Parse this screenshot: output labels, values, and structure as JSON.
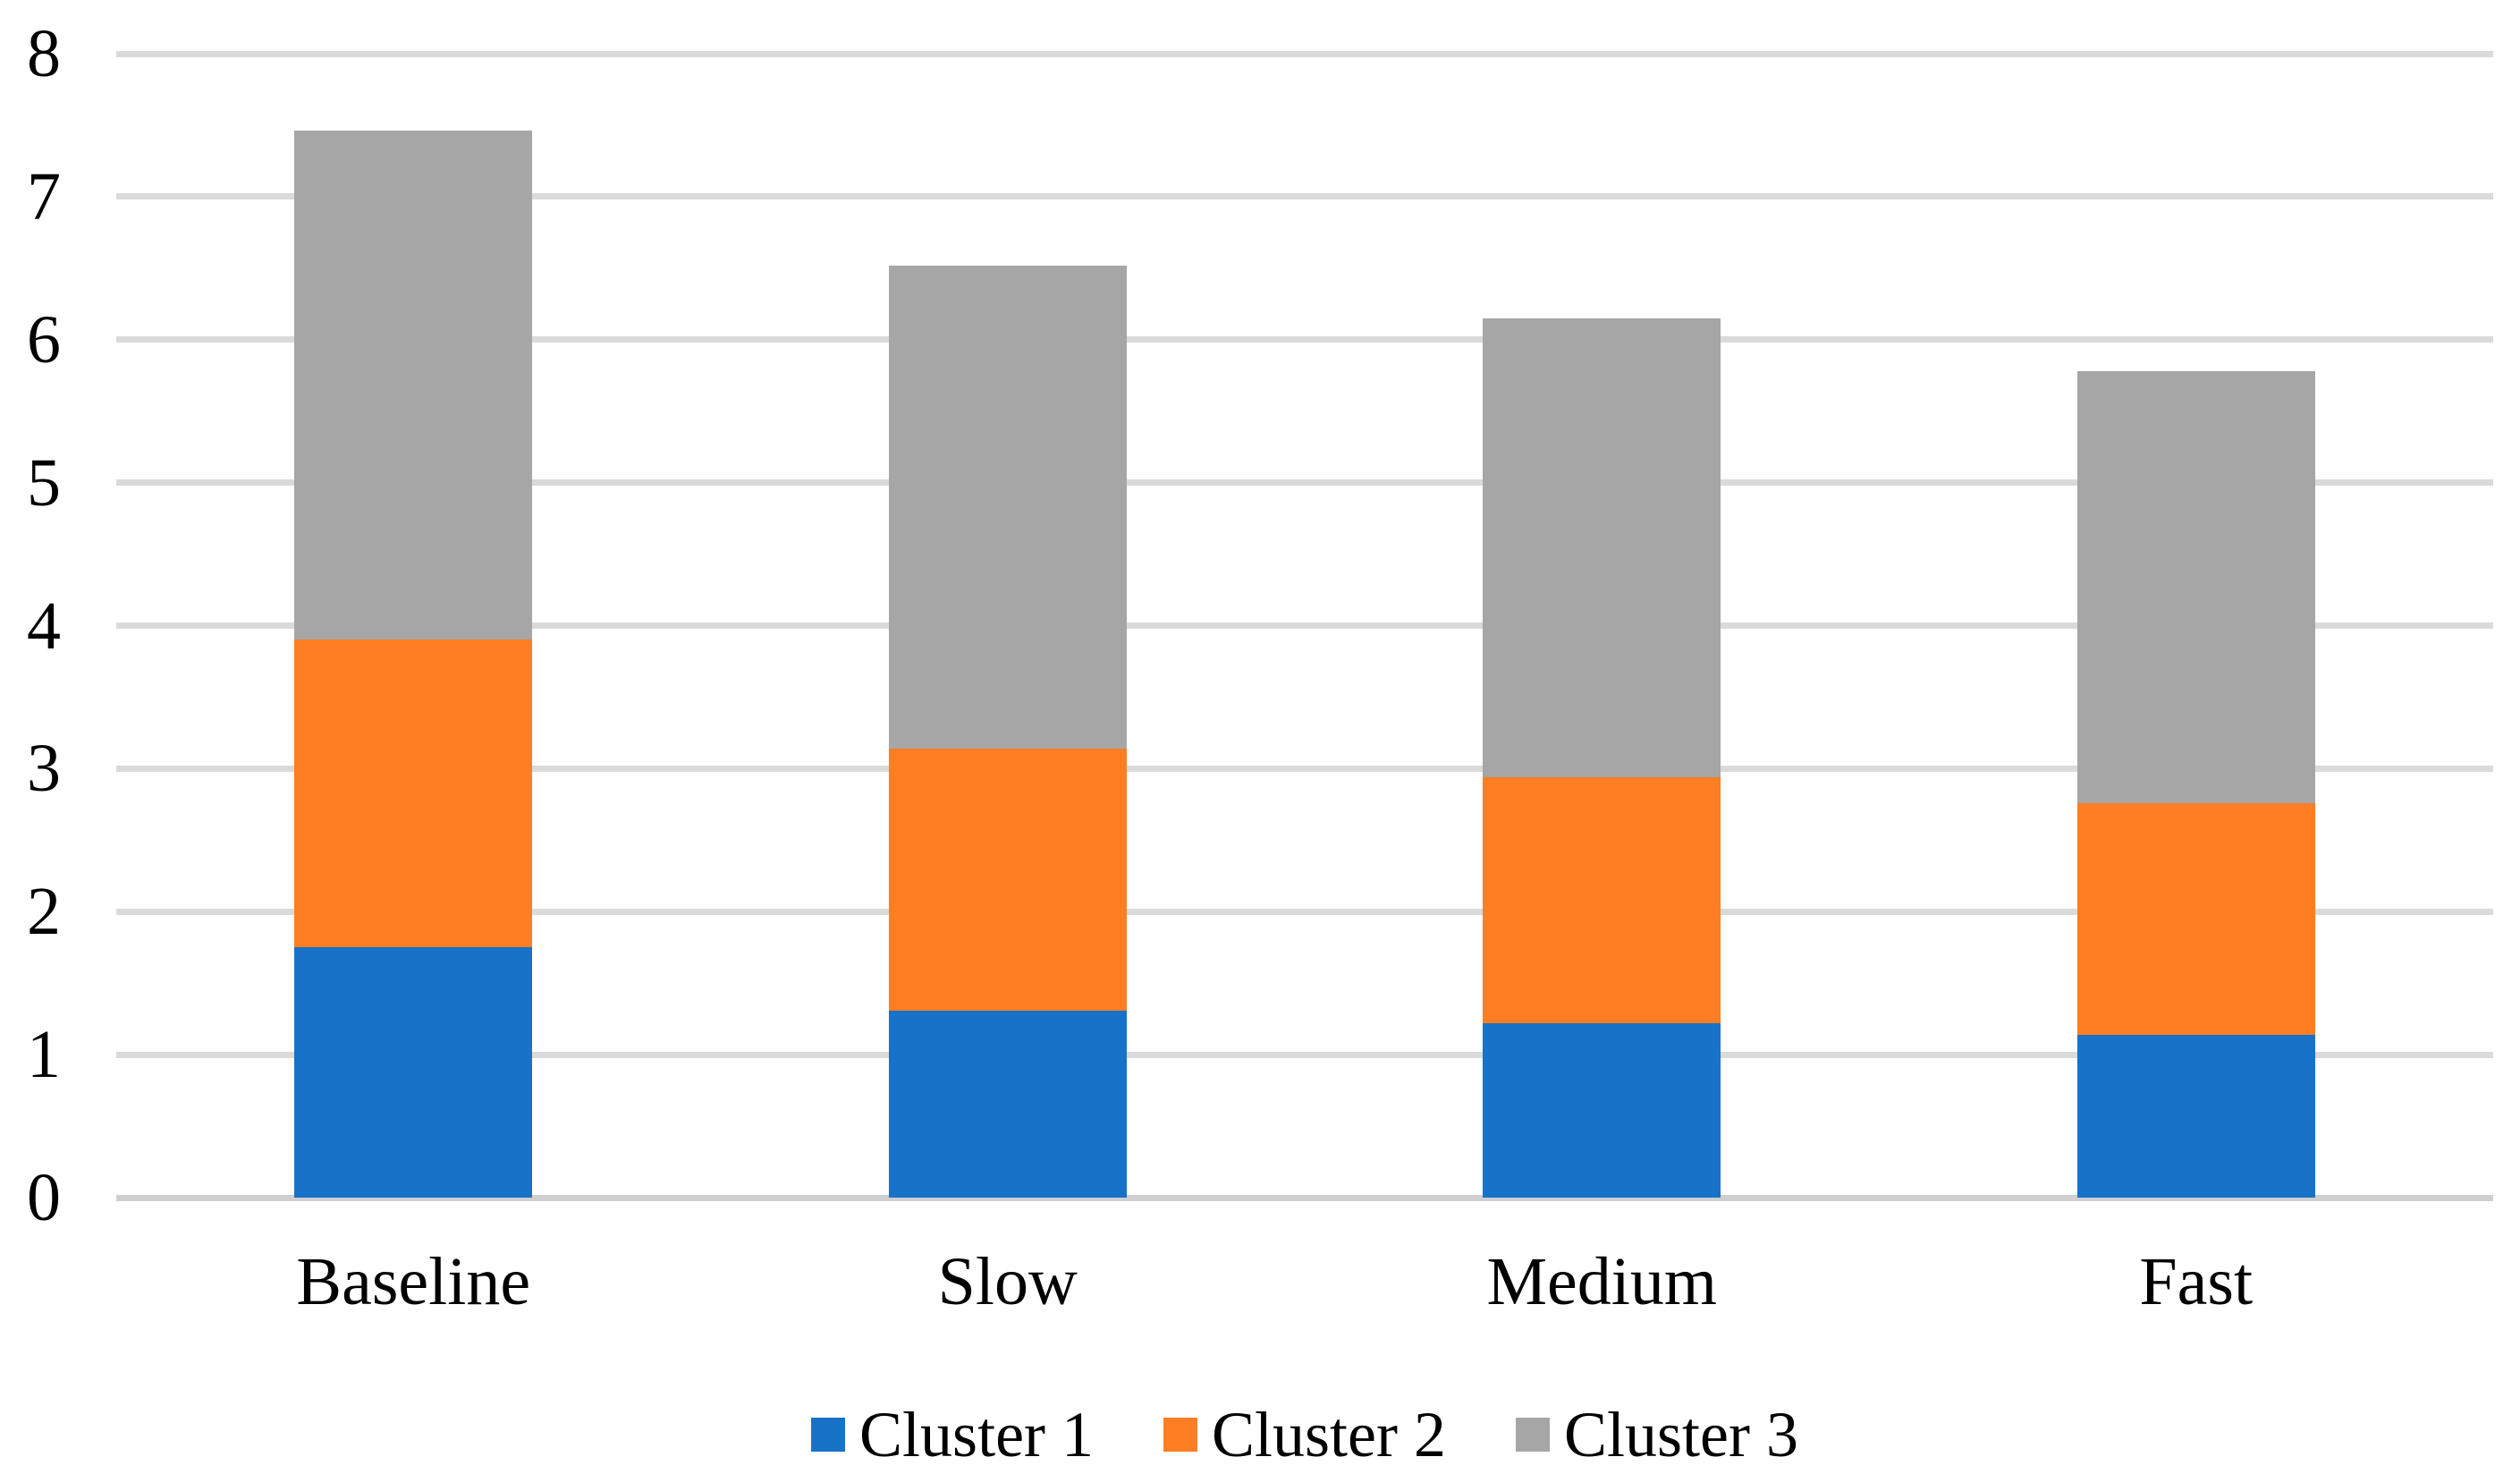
{
  "chart_data": {
    "type": "bar",
    "stacked": true,
    "title": "",
    "xlabel": "",
    "ylabel": "",
    "categories": [
      "Baseline",
      "Slow",
      "Medium",
      "Fast"
    ],
    "series": [
      {
        "name": "Cluster 1",
        "color": "#1772C8",
        "values": [
          1.75,
          1.31,
          1.22,
          1.14
        ]
      },
      {
        "name": "Cluster 2",
        "color": "#FD7E23",
        "values": [
          2.15,
          1.83,
          1.72,
          1.62
        ]
      },
      {
        "name": "Cluster 3",
        "color": "#A6A6A6",
        "values": [
          3.56,
          3.38,
          3.21,
          3.02
        ]
      }
    ],
    "ylim": [
      0,
      8
    ],
    "yticks": [
      0,
      1,
      2,
      3,
      4,
      5,
      6,
      7,
      8
    ],
    "grid": "horizontal",
    "gridline_color": "#DADADA",
    "axis_line_color": "#CFCFCF",
    "text_color": "#000000",
    "background": "#FFFFFF",
    "legend_position": "bottom-center",
    "legend_marker": "square",
    "bar_gap_ratio": 0.4
  }
}
